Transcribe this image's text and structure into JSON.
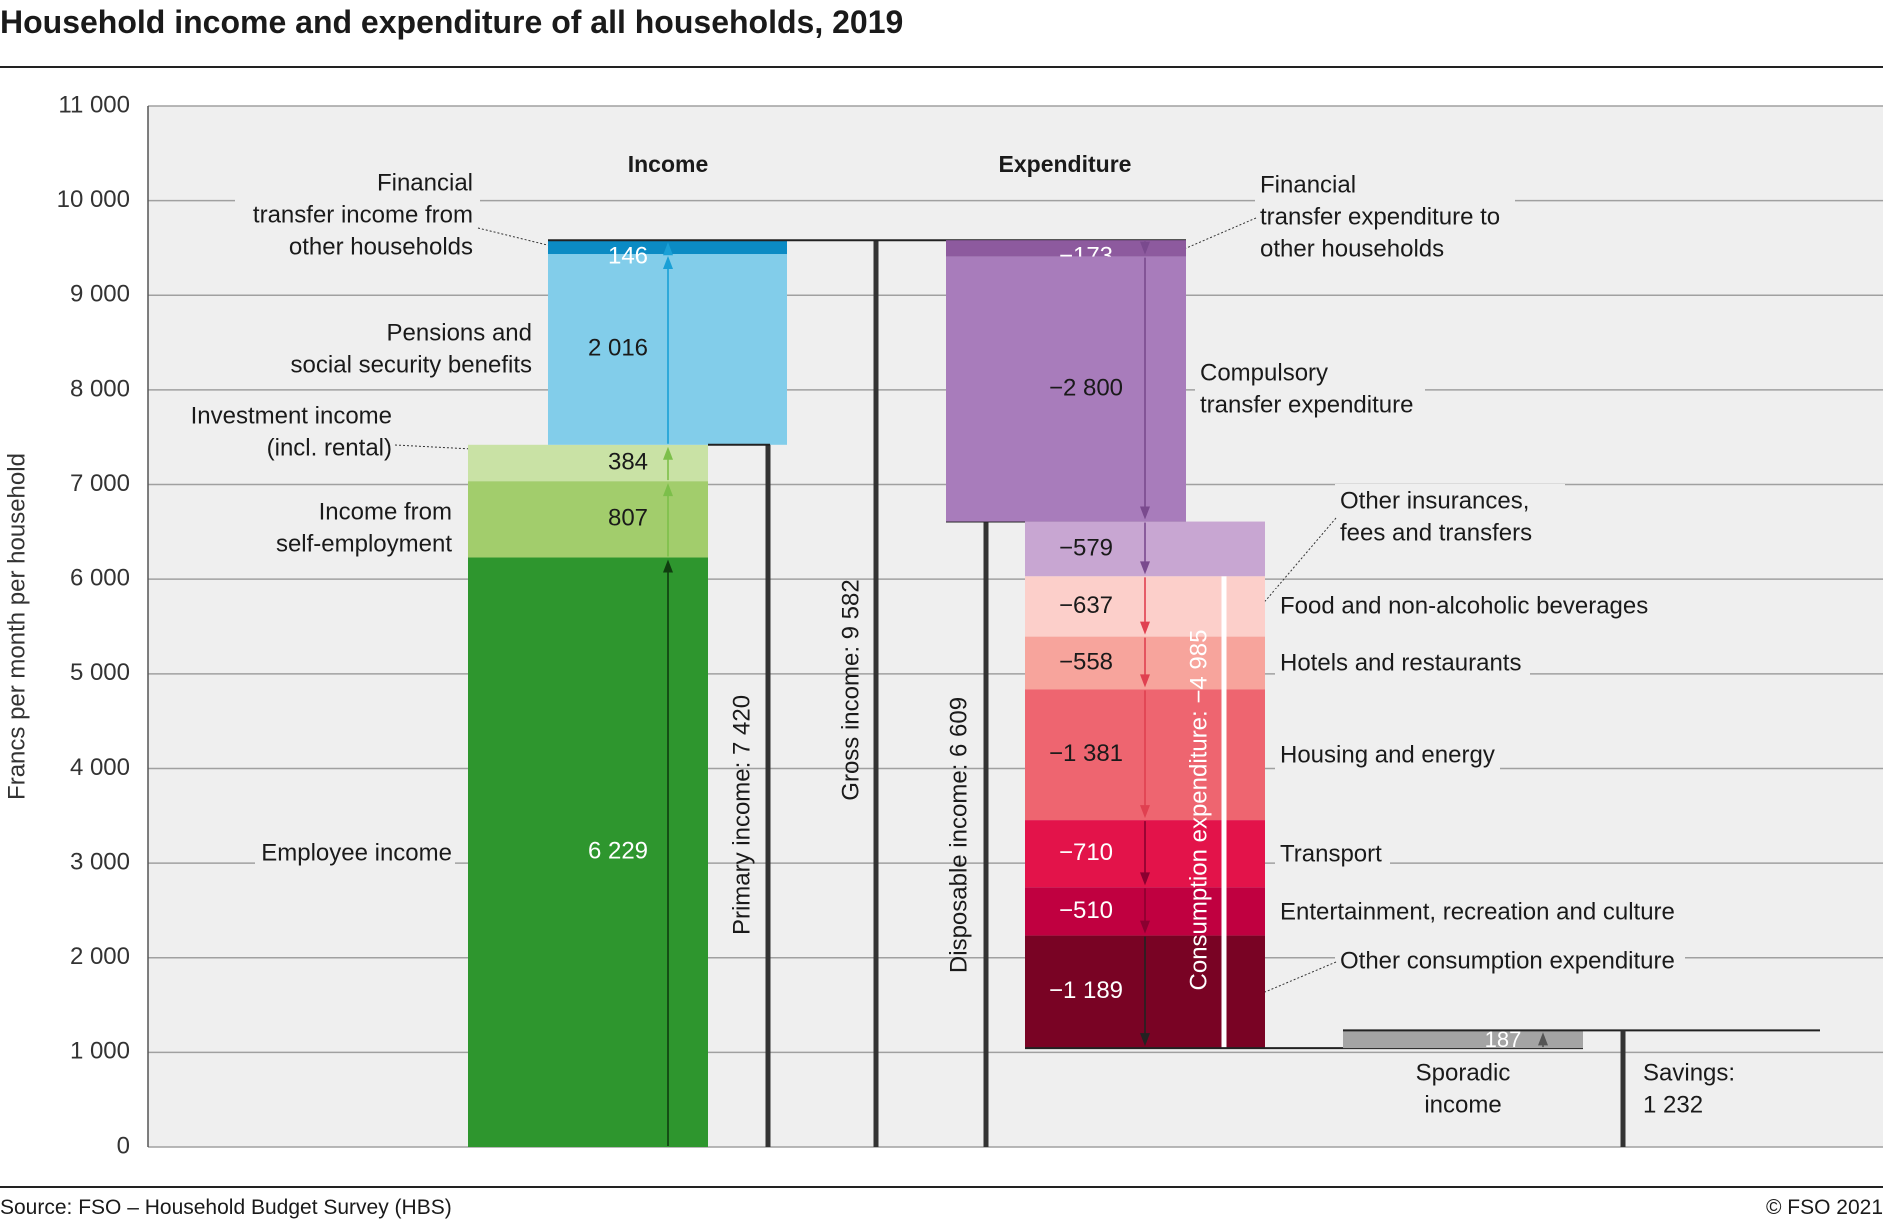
{
  "title": "Household income and expenditure of all households, 2019",
  "source": "Source: FSO – Household Budget Survey (HBS)",
  "copyright": "© FSO 2021",
  "chart_data": {
    "type": "waterfall",
    "ylabel": "Francs per month per household",
    "ylim": [
      0,
      11000
    ],
    "yticks": [
      0,
      1000,
      2000,
      3000,
      4000,
      5000,
      6000,
      7000,
      8000,
      9000,
      10000,
      11000
    ],
    "ytick_labels": [
      "0",
      "1 000",
      "2 000",
      "3 000",
      "4 000",
      "5 000",
      "6 000",
      "7 000",
      "8 000",
      "9 000",
      "10 000",
      "11 000"
    ],
    "grid": true,
    "income_header": "Income",
    "expenditure_header": "Expenditure",
    "income": [
      {
        "label": "Employee income",
        "value": 6229,
        "display": "6 229",
        "color": "#2e962e"
      },
      {
        "label": "Income from self-employment",
        "value": 807,
        "display": "807",
        "color": "#a2cd6c"
      },
      {
        "label": "Investment income (incl. rental)",
        "value": 384,
        "display": "384",
        "color": "#c9e2a5"
      },
      {
        "label": "Pensions and social security benefits",
        "value": 2016,
        "display": "2 016",
        "color": "#82cdea"
      },
      {
        "label": "Financial transfer income from other households",
        "value": 146,
        "display": "146",
        "color": "#0b8bc4"
      }
    ],
    "expenditure": [
      {
        "label": "Financial transfer expenditure to other households",
        "value": -173,
        "display": "−173",
        "color": "#8d5a9e"
      },
      {
        "label": "Compulsory transfer expenditure",
        "value": -2800,
        "display": "−2 800",
        "color": "#a87cbb"
      },
      {
        "label": "Other insurances, fees and transfers",
        "value": -579,
        "display": "−579",
        "color": "#c8a6d2"
      },
      {
        "label": "Food and non-alcoholic beverages",
        "value": -637,
        "display": "−637",
        "color": "#fccfca"
      },
      {
        "label": "Hotels and restaurants",
        "value": -558,
        "display": "−558",
        "color": "#f7a49c"
      },
      {
        "label": "Housing and energy",
        "value": -1381,
        "display": "−1 381",
        "color": "#ee6570"
      },
      {
        "label": "Transport",
        "value": -710,
        "display": "−710",
        "color": "#e3134a"
      },
      {
        "label": "Entertainment, recreation and culture",
        "value": -510,
        "display": "−510",
        "color": "#c00040"
      },
      {
        "label": "Other consumption expenditure",
        "value": -1189,
        "display": "−1 189",
        "color": "#790324"
      }
    ],
    "sporadic_income": {
      "label": "Sporadic income",
      "value": 187,
      "display": "187",
      "color": "#a4a4a4"
    },
    "totals": [
      {
        "label": "Primary income: 7 420",
        "value": 7420
      },
      {
        "label": "Gross income: 9 582",
        "value": 9582
      },
      {
        "label": "Disposable income: 6 609",
        "value": 6609
      },
      {
        "label": "Consumption expenditure: −4 985",
        "value": -4985
      },
      {
        "label": "Savings:",
        "value_label": "1 232",
        "value": 1232
      }
    ],
    "annotations": {
      "fin_income": [
        "Financial",
        "transfer income from",
        "other households"
      ],
      "pensions": [
        "Pensions and",
        "social security benefits"
      ],
      "investment": [
        "Investment income",
        "(incl. rental)"
      ],
      "self_employment": [
        "Income from",
        "self-employment"
      ],
      "employee": [
        "Employee income"
      ],
      "fin_exp": [
        "Financial",
        "transfer expenditure to",
        "other households"
      ],
      "compulsory": [
        "Compulsory",
        "transfer expenditure"
      ],
      "other_ins": [
        "Other insurances,",
        "fees and transfers"
      ],
      "food": [
        "Food and non-alcoholic beverages"
      ],
      "hotels": [
        "Hotels and restaurants"
      ],
      "housing": [
        "Housing and energy"
      ],
      "transport": [
        "Transport"
      ],
      "entertainment": [
        "Entertainment, recreation and culture"
      ],
      "other_cons": [
        "Other consumption expenditure"
      ],
      "sporadic": [
        "Sporadic",
        "income"
      ]
    },
    "colors": {
      "plot_bg": "#efefef",
      "grid": "#a0a0a0",
      "total_bar": "#333333"
    }
  }
}
